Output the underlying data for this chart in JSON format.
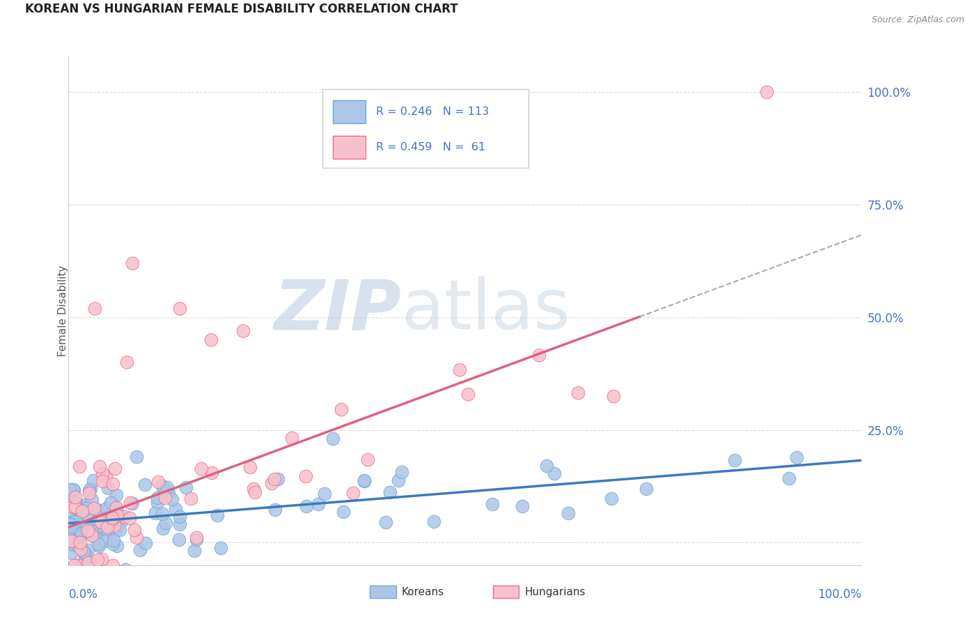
{
  "title": "KOREAN VS HUNGARIAN FEMALE DISABILITY CORRELATION CHART",
  "source": "Source: ZipAtlas.com",
  "ylabel": "Female Disability",
  "series": [
    {
      "name": "Koreans",
      "fill_color": "#aec6e8",
      "edge_color": "#6aaad4",
      "R": 0.246,
      "N": 113,
      "line_color": "#3a7abf",
      "line_style": "-"
    },
    {
      "name": "Hungarians",
      "fill_color": "#f8c0cc",
      "edge_color": "#e87090",
      "R": 0.459,
      "N": 61,
      "line_color": "#e06080",
      "line_style": "-"
    }
  ],
  "legend_text_color": "#333333",
  "legend_num_color": "#4472c4",
  "right_ytick_color": "#4472c4",
  "background_color": "#ffffff",
  "grid_color": "#cccccc",
  "watermark_zip_color": "#c0cfe0",
  "watermark_atlas_color": "#b8c8d8"
}
